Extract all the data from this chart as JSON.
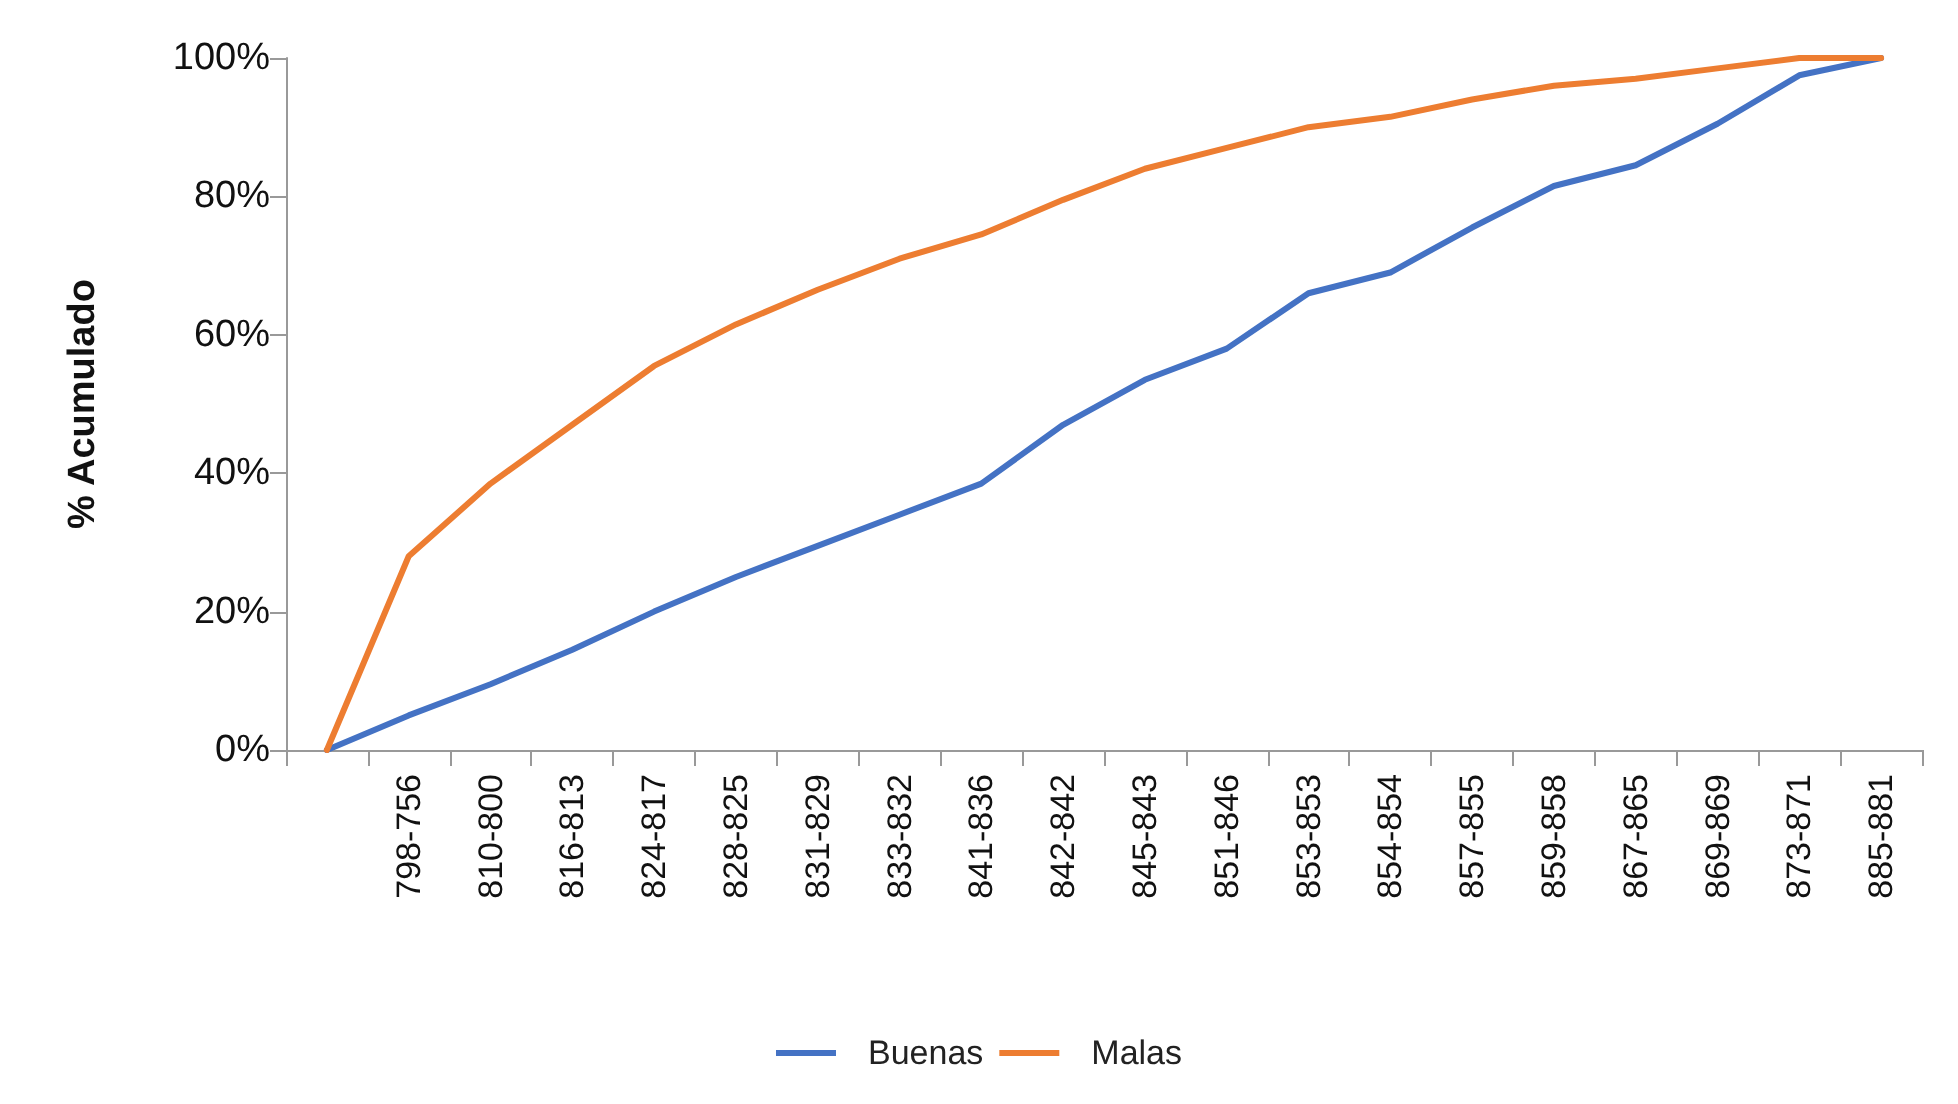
{
  "chart_data": {
    "type": "line",
    "ylabel": "% Acumulado",
    "categories": [
      null,
      "798-756",
      "810-800",
      "816-813",
      "824-817",
      "828-825",
      "831-829",
      "833-832",
      "841-836",
      "842-842",
      "845-843",
      "851-846",
      "853-853",
      "854-854",
      "857-855",
      "859-858",
      "867-865",
      "869-869",
      "873-871",
      "885-881"
    ],
    "series": [
      {
        "name": "Buenas",
        "color": "#4472c4",
        "values": [
          0,
          5,
          9.5,
          14.5,
          20,
          25,
          29.5,
          34,
          38.5,
          47,
          53.5,
          58,
          66,
          69,
          75.5,
          81.5,
          84.5,
          90.5,
          97.5,
          100
        ]
      },
      {
        "name": "Malas",
        "color": "#ed7d31",
        "values": [
          0,
          28,
          38.5,
          47,
          55.5,
          61.5,
          66.5,
          71,
          74.5,
          79.5,
          84,
          87,
          90,
          91.5,
          94,
          96,
          97,
          98.5,
          100,
          100
        ]
      }
    ],
    "ylim": [
      0,
      100
    ],
    "yticks": [
      {
        "value": 0,
        "label": "0%"
      },
      {
        "value": 20,
        "label": "20%"
      },
      {
        "value": 40,
        "label": "40%"
      },
      {
        "value": 60,
        "label": "60%"
      },
      {
        "value": 80,
        "label": "80%"
      },
      {
        "value": 100,
        "label": "100%"
      }
    ],
    "grid": false,
    "legend": "bottom",
    "marker": "none",
    "line_style": "solid"
  }
}
